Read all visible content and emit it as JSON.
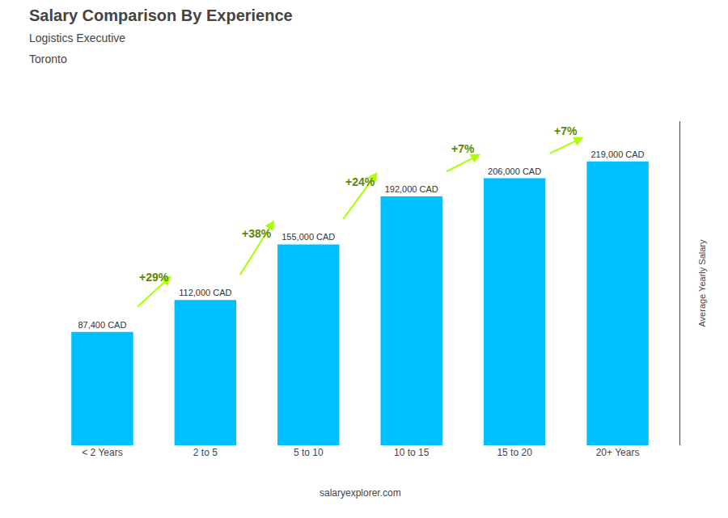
{
  "chart_data": {
    "type": "bar",
    "title": "Salary Comparison By Experience",
    "subtitle": [
      "Logistics Executive",
      "Toronto"
    ],
    "categories": [
      "< 2 Years",
      "2 to 5",
      "5 to 10",
      "10 to 15",
      "15 to 20",
      "20+ Years"
    ],
    "values": [
      87400,
      112000,
      155000,
      192000,
      206000,
      219000
    ],
    "value_labels": [
      "87,400 CAD",
      "112,000 CAD",
      "155,000 CAD",
      "192,000 CAD",
      "206,000 CAD",
      "219,000 CAD"
    ],
    "data_labels": true,
    "color": "#00bfff",
    "ylabel": "Average Yearly Salary",
    "ylim": [
      0,
      250000
    ],
    "tick_labels": "x",
    "grid": false,
    "annotations": [
      {
        "text": "+29%",
        "from": "< 2 Years",
        "to": "2 to 5",
        "color": "#aaff00"
      },
      {
        "text": "+38%",
        "from": "2 to 5",
        "to": "5 to 10",
        "color": "#aaff00"
      },
      {
        "text": "+24%",
        "from": "5 to 10",
        "to": "10 to 15",
        "color": "#aaff00"
      },
      {
        "text": "+7%",
        "from": "10 to 15",
        "to": "15 to 20",
        "color": "#aaff00"
      },
      {
        "text": "+7%",
        "from": "15 to 20",
        "to": "20+ Years",
        "color": "#aaff00"
      },
      {
        "text": "salaryexplorer.com"
      }
    ]
  }
}
